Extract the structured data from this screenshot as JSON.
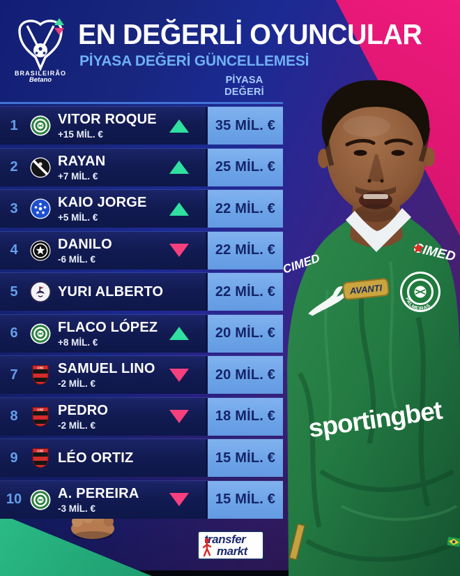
{
  "header": {
    "league_logo": {
      "league": "BRASILEIRÃO",
      "sponsor": "Betano"
    },
    "title": "EN DEĞERLİ OYUNCULAR",
    "subtitle": "PİYASA DEĞERİ GÜNCELLEMESİ"
  },
  "table": {
    "value_header_line1": "PİYASA",
    "value_header_line2": "DEĞERİ",
    "rows": [
      {
        "rank": "1",
        "club": "palmeiras",
        "player": "VITOR ROQUE",
        "change": "+15 MİL. €",
        "trend": "up",
        "value": "35 MİL. €"
      },
      {
        "rank": "2",
        "club": "vasco",
        "player": "RAYAN",
        "change": "+7 MİL. €",
        "trend": "up",
        "value": "25 MİL. €"
      },
      {
        "rank": "3",
        "club": "cruzeiro",
        "player": "KAIO JORGE",
        "change": "+5 MİL. €",
        "trend": "up",
        "value": "22 MİL. €"
      },
      {
        "rank": "4",
        "club": "botafogo",
        "player": "DANILO",
        "change": "-6 MİL. €",
        "trend": "down",
        "value": "22 MİL. €"
      },
      {
        "rank": "5",
        "club": "corinthians",
        "player": "YURI ALBERTO",
        "change": "",
        "trend": "none",
        "value": "22 MİL. €"
      },
      {
        "rank": "6",
        "club": "palmeiras",
        "player": "FLACO LÓPEZ",
        "change": "+8 MİL. €",
        "trend": "up",
        "value": "20 MİL. €"
      },
      {
        "rank": "7",
        "club": "flamengo",
        "player": "SAMUEL LINO",
        "change": "-2 MİL. €",
        "trend": "down",
        "value": "20 MİL. €"
      },
      {
        "rank": "8",
        "club": "flamengo",
        "player": "PEDRO",
        "change": "-2 MİL. €",
        "trend": "down",
        "value": "18 MİL. €"
      },
      {
        "rank": "9",
        "club": "flamengo",
        "player": "LÉO ORTIZ",
        "change": "",
        "trend": "none",
        "value": "15 MİL. €"
      },
      {
        "rank": "10",
        "club": "palmeiras",
        "player": "A. PEREIRA",
        "change": "-3 MİL. €",
        "trend": "down",
        "value": "15 MİL. €"
      }
    ]
  },
  "player_photo": {
    "shoulder_sponsor": "CIMED",
    "chest_patch": "AVANTI",
    "chest_sponsor": "sportingbet",
    "club_badge": "PALMEIRAS"
  },
  "footer": {
    "brand_line1": "transfer",
    "brand_line2": "markt"
  },
  "colors": {
    "trend_up": "#2fe0a0",
    "trend_down": "#f6407e",
    "badge_bg": "#6da4e8",
    "badge_text": "#152468",
    "rank_text": "#64a0ec",
    "subtitle_text": "#6fb0f4",
    "accent_pink_wedge": "#d01268",
    "accent_teal_wedge": "#2bbd87",
    "jersey_green": "#237a42"
  }
}
